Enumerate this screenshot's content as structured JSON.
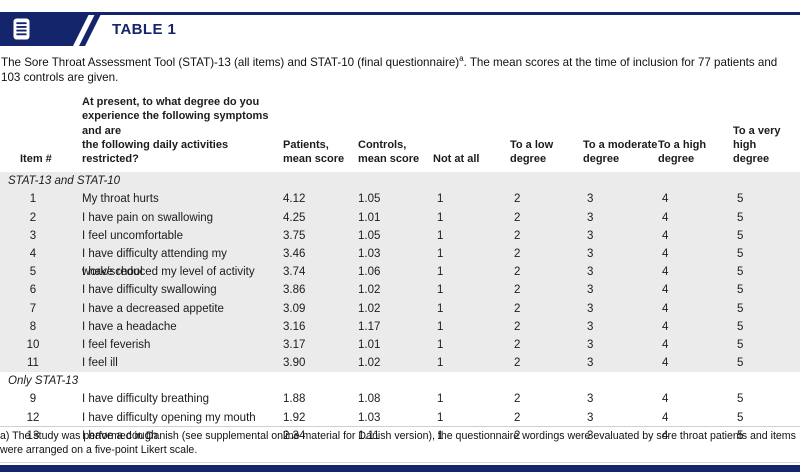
{
  "banner": {
    "title": "TABLE 1",
    "icon": "document-lines-icon"
  },
  "caption": {
    "main": "The Sore Throat Assessment Tool (STAT)-13 (all items) and STAT-10 (final questionnaire)",
    "sup": "a",
    "rest": ". The mean scores at the time of inclusion for 77 patients and 103 controls are given."
  },
  "colors": {
    "navy": "#15256b",
    "section_shading": "#ebebeb",
    "text": "#1c1c1c"
  },
  "table": {
    "columns": [
      "Item #",
      "At present, to what degree do you\nexperience the following symptoms and are\nthe following daily activities restricted?",
      "Patients,\nmean score",
      "Controls,\nmean score",
      "Not at all",
      "To a low\ndegree",
      "To a moderate\ndegree",
      "To a high\ndegree",
      "To a very high\ndegree"
    ],
    "sections": [
      {
        "label": "STAT-13 and STAT-10",
        "shaded": true,
        "rows": [
          {
            "item": "1",
            "question": "My throat hurts",
            "patients": "4.12",
            "controls": "1.05",
            "likert": [
              "1",
              "2",
              "3",
              "4",
              "5"
            ]
          },
          {
            "item": "2",
            "question": "I have pain on swallowing",
            "patients": "4.25",
            "controls": "1.01",
            "likert": [
              "1",
              "2",
              "3",
              "4",
              "5"
            ]
          },
          {
            "item": "3",
            "question": "I feel uncomfortable",
            "patients": "3.75",
            "controls": "1.05",
            "likert": [
              "1",
              "2",
              "3",
              "4",
              "5"
            ]
          },
          {
            "item": "4",
            "question": "I have difficulty attending my work/school",
            "patients": "3.46",
            "controls": "1.03",
            "likert": [
              "1",
              "2",
              "3",
              "4",
              "5"
            ]
          },
          {
            "item": "5",
            "question": "I have reduced my level of activity",
            "patients": "3.74",
            "controls": "1.06",
            "likert": [
              "1",
              "2",
              "3",
              "4",
              "5"
            ]
          },
          {
            "item": "6",
            "question": "I have difficulty swallowing",
            "patients": "3.86",
            "controls": "1.02",
            "likert": [
              "1",
              "2",
              "3",
              "4",
              "5"
            ]
          },
          {
            "item": "7",
            "question": "I have a decreased appetite",
            "patients": "3.09",
            "controls": "1.02",
            "likert": [
              "1",
              "2",
              "3",
              "4",
              "5"
            ]
          },
          {
            "item": "8",
            "question": "I have a headache",
            "patients": "3.16",
            "controls": "1.17",
            "likert": [
              "1",
              "2",
              "3",
              "4",
              "5"
            ]
          },
          {
            "item": "10",
            "question": "I feel feverish",
            "patients": "3.17",
            "controls": "1.01",
            "likert": [
              "1",
              "2",
              "3",
              "4",
              "5"
            ]
          },
          {
            "item": "11",
            "question": "I feel ill",
            "patients": "3.90",
            "controls": "1.02",
            "likert": [
              "1",
              "2",
              "3",
              "4",
              "5"
            ]
          }
        ]
      },
      {
        "label": "Only STAT-13",
        "shaded": false,
        "rows": [
          {
            "item": "9",
            "question": "I have difficulty breathing",
            "patients": "1.88",
            "controls": "1.08",
            "likert": [
              "1",
              "2",
              "3",
              "4",
              "5"
            ]
          },
          {
            "item": "12",
            "question": "I have difficulty opening my mouth",
            "patients": "1.92",
            "controls": "1.03",
            "likert": [
              "1",
              "2",
              "3",
              "4",
              "5"
            ]
          },
          {
            "item": "13",
            "question": "I have a cough",
            "patients": "2.34",
            "controls": "1.11",
            "likert": [
              "1",
              "2",
              "3",
              "4",
              "5"
            ]
          }
        ]
      }
    ]
  },
  "footnote": "a) The study was performed in Danish (see supplemental online material for Danish version), the questionnaire wordings were evaluated by sore throat patients and items were arranged on a five-point Likert scale."
}
